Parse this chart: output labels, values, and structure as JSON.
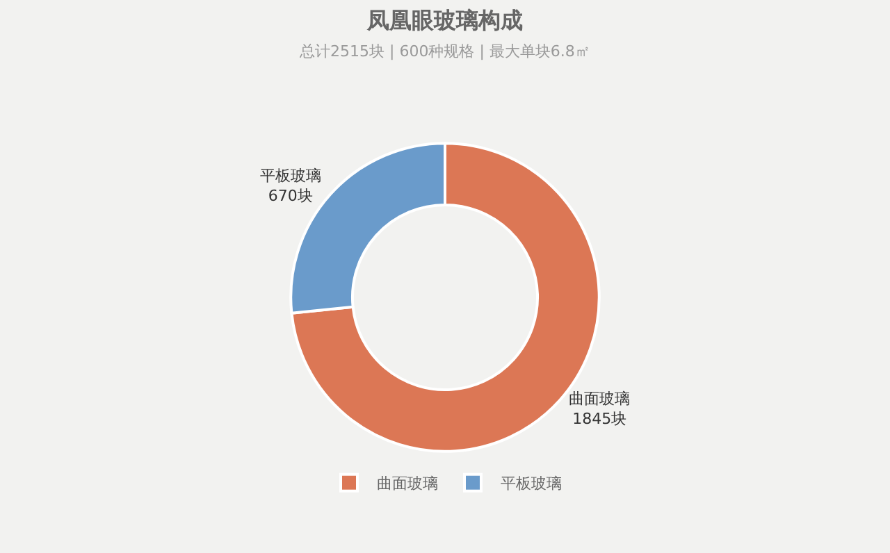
{
  "chart_data": {
    "type": "donut",
    "title": "凤凰眼玻璃构成",
    "subtitle": "总计2515块 | 600种规格 | 最大单块6.8㎡",
    "categories": [
      "曲面玻璃",
      "平板玻璃"
    ],
    "values": [
      1845,
      670
    ],
    "colors": [
      "#dc7755",
      "#6a9bcb"
    ],
    "value_labels": [
      "1845块",
      "670块"
    ],
    "legend": "bottom"
  }
}
